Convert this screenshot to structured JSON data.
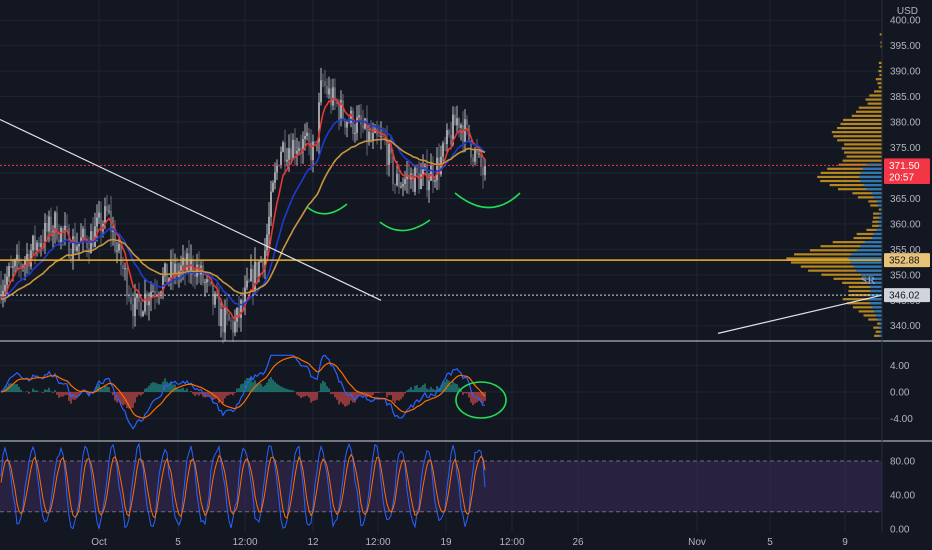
{
  "chart_data": [
    {
      "type": "candlestick",
      "panel": "price",
      "currency_label": "USD",
      "y_ticks": [
        340,
        345,
        350,
        355,
        360,
        365,
        370,
        375,
        380,
        385,
        390,
        395,
        400
      ],
      "y_tick_labels": [
        "340.00",
        "345.00",
        "350.00",
        "355.00",
        "360.00",
        "365.00",
        "370.00",
        "375.00",
        "380.00",
        "385.00",
        "390.00",
        "395.00",
        "400.00"
      ],
      "ylim": [
        337.2,
        402.4
      ],
      "x_tick_labels": [
        "Oct",
        "5",
        "12:00",
        "12",
        "12:00",
        "19",
        "12:00",
        "26",
        "Nov",
        "5",
        "9"
      ],
      "price_tags": [
        {
          "label": "371.50",
          "value": 371.5,
          "color": "#f23645",
          "text_color": "#ffffff"
        },
        {
          "label": "20:57",
          "value": 369.2,
          "color": "#f23645",
          "text_color": "#ffffff"
        },
        {
          "label": "352.88",
          "value": 352.88,
          "color": "#e8c277",
          "text_color": "#131722"
        },
        {
          "label": "346.02",
          "value": 346.02,
          "color": "#d1d4dc",
          "text_color": "#131722"
        }
      ],
      "horizontal_lines": [
        {
          "value": 352.88,
          "color": "#f0b429",
          "style": "solid"
        },
        {
          "value": 346.02,
          "color": "#d1d4dc",
          "style": "dotted"
        },
        {
          "value": 371.5,
          "color": "#f23645",
          "style": "dotted"
        }
      ],
      "moving_averages": [
        {
          "color": "#e53935"
        },
        {
          "color": "#1e3ad1"
        },
        {
          "color": "#c8963e"
        }
      ],
      "annotation_text": "SR",
      "candle_up_color": "#ffffff",
      "candle_down_color": "#8a8f9c",
      "volume_profile_colors": [
        "#d49a1f",
        "#1e78c8"
      ]
    },
    {
      "type": "line",
      "panel": "macd",
      "y_tick_labels": [
        "4.00",
        "0.00",
        "-4.00"
      ],
      "y_ticks": [
        4,
        0,
        -4
      ],
      "ylim": [
        -6,
        6
      ],
      "series_colors": [
        "#2962ff",
        "#ff6d00"
      ],
      "histogram_colors": [
        "#26a69a",
        "#ef5350"
      ]
    },
    {
      "type": "line",
      "panel": "stochastic_rsi",
      "y_tick_labels": [
        "80.00",
        "40.00",
        "0.00"
      ],
      "y_ticks": [
        80,
        40,
        0
      ],
      "ylim": [
        -5,
        100
      ],
      "band": [
        20,
        80
      ],
      "series_colors": [
        "#2962ff",
        "#ff6d00"
      ],
      "band_color": "#3b2a5a"
    }
  ]
}
